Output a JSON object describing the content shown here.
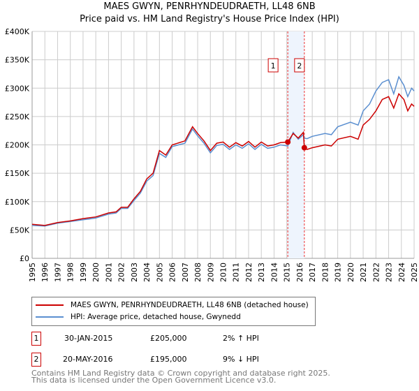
{
  "title": "MAES GWYN, PENRHYNDEUDRAETH, LL48 6NB",
  "subtitle": "Price paid vs. HM Land Registry's House Price Index (HPI)",
  "colors": {
    "property": "#cc0000",
    "hpi": "#5b8fd0",
    "band": "#eef4fd"
  },
  "chart_data": {
    "type": "line",
    "title": "MAES GWYN, PENRHYNDEUDRAETH, LL48 6NB",
    "xlim": [
      1995,
      2025
    ],
    "ylim": [
      0,
      400000
    ],
    "yticks": [
      "£0",
      "£50K",
      "£100K",
      "£150K",
      "£200K",
      "£250K",
      "£300K",
      "£350K",
      "£400K"
    ],
    "xticks": [
      "1995",
      "1996",
      "1997",
      "1998",
      "1999",
      "2000",
      "2001",
      "2002",
      "2003",
      "2004",
      "2005",
      "2006",
      "2007",
      "2008",
      "2009",
      "2010",
      "2011",
      "2012",
      "2013",
      "2014",
      "2015",
      "2016",
      "2017",
      "2018",
      "2019",
      "2020",
      "2021",
      "2022",
      "2023",
      "2024",
      "2025"
    ],
    "grid": true,
    "series": [
      {
        "name": "MAES GWYN, PENRHYNDEUDRAETH, LL48 6NB (detached house)",
        "x": [
          1995,
          1996,
          1997,
          1998,
          1999,
          2000,
          2001,
          2001.6,
          2002,
          2002.5,
          2003,
          2003.5,
          2004,
          2004.5,
          2005,
          2005.5,
          2006,
          2007,
          2007.6,
          2008,
          2008.5,
          2009,
          2009.5,
          2010,
          2010.5,
          2011,
          2011.5,
          2012,
          2012.5,
          2013,
          2013.5,
          2014,
          2014.5,
          2015.08,
          2015.5,
          2015.9,
          2016.3,
          2016.38,
          2016.6,
          2017,
          2018,
          2018.5,
          2019,
          2020,
          2020.6,
          2021,
          2021.5,
          2022,
          2022.5,
          2023,
          2023.4,
          2023.8,
          2024.2,
          2024.5,
          2024.8,
          2025
        ],
        "values": [
          60000,
          58000,
          63000,
          66000,
          70000,
          73000,
          80000,
          82000,
          90000,
          90000,
          105000,
          118000,
          140000,
          150000,
          190000,
          182000,
          200000,
          207000,
          232000,
          220000,
          207000,
          190000,
          203000,
          205000,
          196000,
          204000,
          198000,
          206000,
          196000,
          205000,
          198000,
          200000,
          204000,
          205000,
          220000,
          212000,
          222000,
          195000,
          192000,
          195000,
          200000,
          198000,
          210000,
          215000,
          210000,
          235000,
          245000,
          260000,
          280000,
          285000,
          265000,
          290000,
          280000,
          260000,
          272000,
          268000
        ]
      },
      {
        "name": "HPI: Average price, detached house, Gwynedd",
        "x": [
          1995,
          1996,
          1997,
          1998,
          1999,
          2000,
          2001,
          2001.6,
          2002,
          2002.5,
          2003,
          2003.5,
          2004,
          2004.5,
          2005,
          2005.5,
          2006,
          2007,
          2007.6,
          2008,
          2008.5,
          2009,
          2009.5,
          2010,
          2010.5,
          2011,
          2011.5,
          2012,
          2012.5,
          2013,
          2013.5,
          2014,
          2014.5,
          2015.08,
          2015.5,
          2015.9,
          2016.3,
          2016.38,
          2016.6,
          2017,
          2018,
          2018.5,
          2019,
          2020,
          2020.6,
          2021,
          2021.5,
          2022,
          2022.5,
          2023,
          2023.4,
          2023.8,
          2024.2,
          2024.5,
          2024.8,
          2025
        ],
        "values": [
          58000,
          57000,
          62000,
          65000,
          68000,
          71000,
          78000,
          80000,
          88000,
          88000,
          102000,
          115000,
          136000,
          146000,
          185000,
          178000,
          197000,
          203000,
          228000,
          216000,
          203000,
          186000,
          199000,
          201000,
          192000,
          200000,
          194000,
          202000,
          192000,
          201000,
          194000,
          196000,
          200000,
          198000,
          222000,
          210000,
          218000,
          212000,
          211000,
          215000,
          220000,
          218000,
          232000,
          240000,
          235000,
          260000,
          272000,
          295000,
          310000,
          315000,
          290000,
          320000,
          305000,
          285000,
          300000,
          295000
        ]
      }
    ],
    "annotations": [
      {
        "label": "1",
        "x": 2015.08
      },
      {
        "label": "2",
        "x": 2016.38
      }
    ],
    "sales_points": [
      {
        "x": 2015.08,
        "y": 205000
      },
      {
        "x": 2016.38,
        "y": 195000
      }
    ]
  },
  "legend": {
    "property_label": "MAES GWYN, PENRHYNDEUDRAETH, LL48 6NB (detached house)",
    "hpi_label": "HPI: Average price, detached house, Gwynedd"
  },
  "transactions": [
    {
      "num": "1",
      "date": "30-JAN-2015",
      "price": "£205,000",
      "hpi": "2% ↑ HPI"
    },
    {
      "num": "2",
      "date": "20-MAY-2016",
      "price": "£195,000",
      "hpi": "9% ↓ HPI"
    }
  ],
  "footer": {
    "line1": "Contains HM Land Registry data © Crown copyright and database right 2025.",
    "line2": "This data is licensed under the Open Government Licence v3.0."
  }
}
